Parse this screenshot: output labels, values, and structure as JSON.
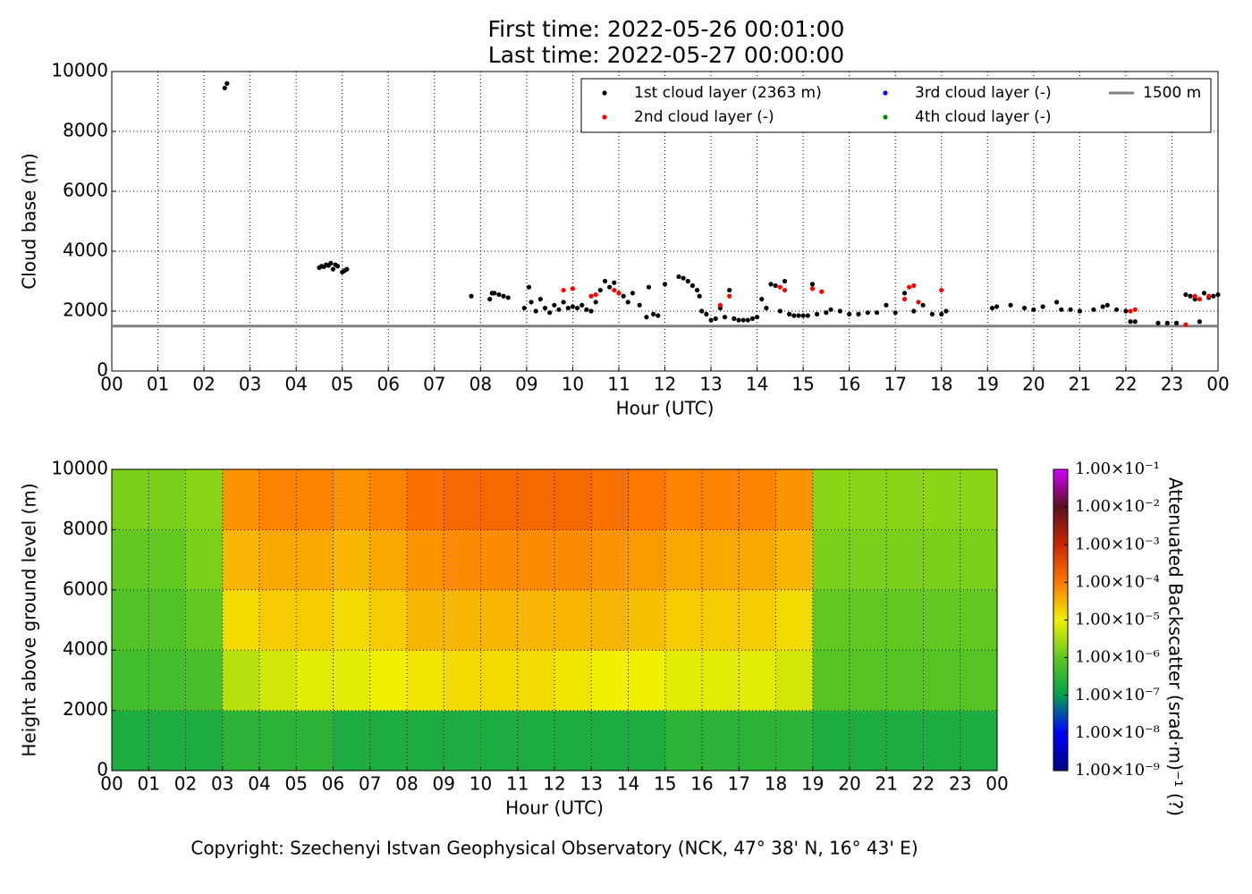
{
  "copyright": "Copyright: Szechenyi Istvan Geophysical Observatory (NCK, 47° 38' N, 16° 43' E)",
  "chart_data": [
    {
      "type": "scatter",
      "title": "First time: 2022-05-26 00:01:00",
      "subtitle": "Last time: 2022-05-27 00:00:00",
      "x_label": "Hour (UTC)",
      "y_label": "Cloud base (m)",
      "legend": "upper right",
      "grid": true,
      "xlim": [
        0,
        24
      ],
      "ylim": [
        0,
        10000
      ],
      "xticks": [
        {
          "value": 0,
          "label": "00"
        },
        {
          "value": 1,
          "label": "01"
        },
        {
          "value": 2,
          "label": "02"
        },
        {
          "value": 3,
          "label": "03"
        },
        {
          "value": 4,
          "label": "04"
        },
        {
          "value": 5,
          "label": "05"
        },
        {
          "value": 6,
          "label": "06"
        },
        {
          "value": 7,
          "label": "07"
        },
        {
          "value": 8,
          "label": "08"
        },
        {
          "value": 9,
          "label": "09"
        },
        {
          "value": 10,
          "label": "10"
        },
        {
          "value": 11,
          "label": "11"
        },
        {
          "value": 12,
          "label": "12"
        },
        {
          "value": 13,
          "label": "13"
        },
        {
          "value": 14,
          "label": "14"
        },
        {
          "value": 15,
          "label": "15"
        },
        {
          "value": 16,
          "label": "16"
        },
        {
          "value": 17,
          "label": "17"
        },
        {
          "value": 18,
          "label": "18"
        },
        {
          "value": 19,
          "label": "19"
        },
        {
          "value": 20,
          "label": "20"
        },
        {
          "value": 21,
          "label": "21"
        },
        {
          "value": 22,
          "label": "22"
        },
        {
          "value": 23,
          "label": "23"
        },
        {
          "value": 24,
          "label": "00"
        }
      ],
      "yticks": [
        0,
        2000,
        4000,
        6000,
        8000,
        10000
      ],
      "series": [
        {
          "name": "1st cloud layer (2363 m)",
          "color": "#000000",
          "x": [
            2.45,
            2.5,
            4.5,
            4.55,
            4.6,
            4.65,
            4.7,
            4.75,
            4.8,
            4.85,
            4.9,
            5.0,
            5.05,
            5.1,
            7.8,
            8.2,
            8.25,
            8.3,
            8.4,
            8.5,
            8.6,
            8.95,
            9.05,
            9.1,
            9.2,
            9.3,
            9.4,
            9.5,
            9.6,
            9.7,
            9.8,
            9.9,
            10.0,
            10.1,
            10.2,
            10.3,
            10.4,
            10.5,
            10.6,
            10.7,
            10.8,
            10.9,
            11.0,
            11.1,
            11.2,
            11.3,
            11.45,
            11.6,
            11.65,
            11.75,
            11.85,
            12.0,
            12.3,
            12.4,
            12.5,
            12.6,
            12.7,
            12.75,
            12.8,
            12.9,
            13.0,
            13.1,
            13.2,
            13.3,
            13.4,
            13.5,
            13.6,
            13.7,
            13.8,
            13.9,
            14.0,
            14.1,
            14.2,
            14.3,
            14.4,
            14.5,
            14.6,
            14.7,
            14.8,
            14.9,
            15.0,
            15.1,
            15.2,
            15.3,
            15.5,
            15.6,
            15.8,
            16.0,
            16.2,
            16.4,
            16.6,
            16.8,
            17.0,
            17.2,
            17.4,
            17.6,
            17.8,
            18.0,
            18.1,
            19.1,
            19.2,
            19.5,
            19.8,
            20.0,
            20.2,
            20.5,
            20.6,
            20.8,
            21.0,
            21.3,
            21.5,
            21.6,
            21.8,
            22.0,
            22.1,
            22.2,
            22.7,
            22.9,
            23.1,
            23.3,
            23.4,
            23.5,
            23.6,
            23.7,
            23.8,
            23.9,
            24.0
          ],
          "values": [
            9450,
            9600,
            3450,
            3500,
            3480,
            3550,
            3520,
            3600,
            3400,
            3550,
            3500,
            3300,
            3350,
            3400,
            2500,
            2400,
            2600,
            2600,
            2550,
            2500,
            2450,
            2100,
            2800,
            2300,
            2000,
            2400,
            2100,
            1950,
            2200,
            2050,
            2300,
            2100,
            2150,
            2100,
            2200,
            2050,
            2000,
            2300,
            2700,
            3000,
            2800,
            2950,
            2600,
            2500,
            2300,
            2600,
            2200,
            1800,
            2800,
            1900,
            1850,
            2900,
            3150,
            3100,
            3000,
            2850,
            2700,
            2500,
            2000,
            1900,
            1700,
            1750,
            2100,
            1800,
            2700,
            1750,
            1700,
            1700,
            1700,
            1750,
            1800,
            2400,
            2100,
            2900,
            2850,
            2000,
            3000,
            1900,
            1850,
            1850,
            1850,
            1850,
            2900,
            1900,
            1950,
            2050,
            2000,
            1900,
            1900,
            1950,
            1950,
            2200,
            1950,
            2600,
            2000,
            2200,
            1900,
            1900,
            2000,
            2100,
            2150,
            2200,
            2100,
            2050,
            2150,
            2300,
            2050,
            2050,
            2000,
            2050,
            2150,
            2200,
            2050,
            2000,
            1650,
            1650,
            1600,
            1600,
            1600,
            2550,
            2500,
            2400,
            1650,
            2600,
            2450,
            2500,
            2550
          ]
        },
        {
          "name": "2nd cloud layer (-)",
          "color": "#ff0000",
          "x": [
            9.8,
            10.0,
            10.4,
            10.5,
            10.9,
            11.0,
            13.2,
            13.4,
            14.5,
            14.6,
            15.2,
            15.4,
            17.2,
            17.3,
            17.4,
            17.5,
            18.0,
            22.1,
            22.2,
            23.3,
            23.5,
            23.6,
            23.8
          ],
          "values": [
            2700,
            2750,
            2500,
            2550,
            2700,
            2600,
            2200,
            2500,
            2800,
            2700,
            2750,
            2650,
            2400,
            2800,
            2850,
            2300,
            2700,
            2000,
            2050,
            1550,
            2500,
            2400,
            2500
          ]
        },
        {
          "name": "3rd cloud layer (-)",
          "color": "#0000ff",
          "x": [],
          "values": []
        },
        {
          "name": "4th cloud layer (-)",
          "color": "#008000",
          "x": [],
          "values": []
        }
      ],
      "hline": {
        "name": "1500 m",
        "value": 1500,
        "color": "#808080"
      }
    },
    {
      "type": "heatmap",
      "x_label": "Hour (UTC)",
      "y_label": "Height above ground level (m)",
      "grid": true,
      "colorbar_label": "Attenuated Backscatter (srad·m)⁻¹ (?)",
      "xlim": [
        0,
        24
      ],
      "ylim": [
        0,
        10000
      ],
      "xticks": [
        {
          "value": 0,
          "label": "00"
        },
        {
          "value": 1,
          "label": "01"
        },
        {
          "value": 2,
          "label": "02"
        },
        {
          "value": 3,
          "label": "03"
        },
        {
          "value": 4,
          "label": "04"
        },
        {
          "value": 5,
          "label": "05"
        },
        {
          "value": 6,
          "label": "06"
        },
        {
          "value": 7,
          "label": "07"
        },
        {
          "value": 8,
          "label": "08"
        },
        {
          "value": 9,
          "label": "09"
        },
        {
          "value": 10,
          "label": "10"
        },
        {
          "value": 11,
          "label": "11"
        },
        {
          "value": 12,
          "label": "12"
        },
        {
          "value": 13,
          "label": "13"
        },
        {
          "value": 14,
          "label": "14"
        },
        {
          "value": 15,
          "label": "15"
        },
        {
          "value": 16,
          "label": "16"
        },
        {
          "value": 17,
          "label": "17"
        },
        {
          "value": 18,
          "label": "18"
        },
        {
          "value": 19,
          "label": "19"
        },
        {
          "value": 20,
          "label": "20"
        },
        {
          "value": 21,
          "label": "21"
        },
        {
          "value": 22,
          "label": "22"
        },
        {
          "value": 23,
          "label": "23"
        },
        {
          "value": 24,
          "label": "00"
        }
      ],
      "yticks": [
        0,
        2000,
        4000,
        6000,
        8000,
        10000
      ],
      "log_color": true,
      "cticks": [
        {
          "value": 1e-09,
          "label": "1.00×10⁻⁹"
        },
        {
          "value": 1e-08,
          "label": "1.00×10⁻⁸"
        },
        {
          "value": 1e-07,
          "label": "1.00×10⁻⁷"
        },
        {
          "value": 1e-06,
          "label": "1.00×10⁻⁶"
        },
        {
          "value": 1e-05,
          "label": "1.00×10⁻⁵"
        },
        {
          "value": 0.0001,
          "label": "1.00×10⁻⁴"
        },
        {
          "value": 0.001,
          "label": "1.00×10⁻³"
        },
        {
          "value": 0.01,
          "label": "1.00×10⁻²"
        },
        {
          "value": 0.1,
          "label": "1.00×10⁻¹"
        }
      ],
      "colors": [
        "#000080",
        "#0000ff",
        "#00a050",
        "#60c820",
        "#f0f000",
        "#ff7800",
        "#c82800",
        "#5a1020",
        "#d000ff"
      ],
      "xbins": [
        0,
        1,
        2,
        3,
        4,
        5,
        6,
        7,
        8,
        9,
        10,
        11,
        12,
        13,
        14,
        15,
        16,
        17,
        18,
        19,
        20,
        21,
        22,
        23,
        24
      ],
      "ybins": [
        0,
        2000,
        4000,
        6000,
        8000,
        10000
      ],
      "z": [
        [
          2e-07,
          2e-07,
          2e-07,
          3e-07,
          3e-07,
          3e-07,
          2e-07,
          2e-07,
          2e-07,
          2e-07,
          2e-07,
          2e-07,
          2e-07,
          2e-07,
          2e-07,
          3e-07,
          3e-07,
          3e-07,
          3e-07,
          2e-07,
          2e-07,
          2e-07,
          2e-07,
          2e-07
        ],
        [
          5e-07,
          5e-07,
          6e-07,
          4e-06,
          6e-06,
          8e-06,
          8e-06,
          1e-05,
          1.2e-05,
          1.5e-05,
          1.5e-05,
          1.5e-05,
          1.2e-05,
          1e-05,
          1e-05,
          8e-06,
          8e-06,
          8e-06,
          6e-06,
          8e-07,
          8e-07,
          8e-07,
          8e-07,
          8e-07
        ],
        [
          7e-07,
          7e-07,
          1e-06,
          1.5e-05,
          2e-05,
          2e-05,
          1.5e-05,
          2e-05,
          3e-05,
          3e-05,
          3e-05,
          3e-05,
          3e-05,
          3e-05,
          2.5e-05,
          2e-05,
          2e-05,
          2e-05,
          1.5e-05,
          1e-06,
          1e-06,
          1e-06,
          1e-06,
          1e-06
        ],
        [
          1e-06,
          1e-06,
          1.5e-06,
          3e-05,
          4e-05,
          4e-05,
          3e-05,
          4e-05,
          6e-05,
          7e-05,
          7e-05,
          7e-05,
          7e-05,
          6e-05,
          5e-05,
          4e-05,
          4e-05,
          4e-05,
          3e-05,
          1.5e-06,
          1.5e-06,
          1.5e-06,
          1.5e-06,
          1.5e-06
        ],
        [
          1.5e-06,
          1.5e-06,
          2e-06,
          6e-05,
          8e-05,
          8e-05,
          6e-05,
          8e-05,
          0.00012,
          0.00015,
          0.00015,
          0.00015,
          0.00015,
          0.00012,
          0.0001,
          8e-05,
          8e-05,
          8e-05,
          6e-05,
          2e-06,
          2e-06,
          2e-06,
          2e-06,
          2e-06
        ]
      ]
    }
  ]
}
